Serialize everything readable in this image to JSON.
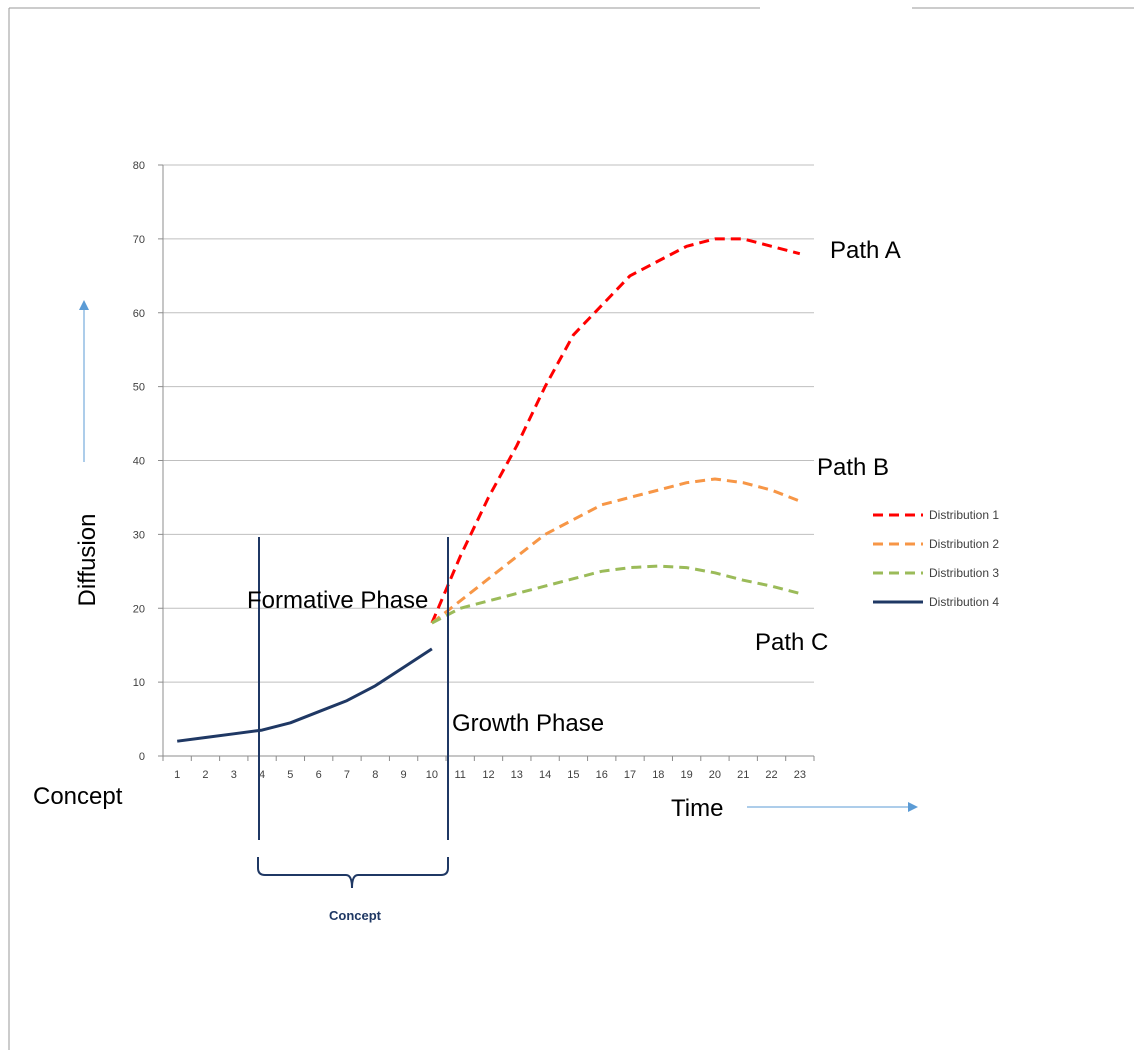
{
  "labels": {
    "y_axis": "Diffusion",
    "x_axis": "Time",
    "concept_left": "Concept",
    "formative_phase": "Formative Phase",
    "growth_phase": "Growth Phase",
    "path_a": "Path A",
    "path_b": "Path B",
    "path_c": "Path C",
    "bracket_label": "Concept"
  },
  "chart_data": {
    "type": "line",
    "x": [
      1,
      2,
      3,
      4,
      5,
      6,
      7,
      8,
      9,
      10,
      11,
      12,
      13,
      14,
      15,
      16,
      17,
      18,
      19,
      20,
      21,
      22,
      23
    ],
    "ylim": [
      0,
      80
    ],
    "yticks": [
      0,
      10,
      20,
      30,
      40,
      50,
      60,
      70,
      80
    ],
    "grid": true,
    "legend": "right",
    "series": [
      {
        "name": "Distribution 1",
        "color": "#ff0000",
        "dash": true,
        "x": [
          10,
          11,
          12,
          13,
          14,
          15,
          16,
          17,
          18,
          19,
          20,
          21,
          22,
          23
        ],
        "values": [
          18,
          27,
          35,
          42,
          50,
          57,
          61,
          65,
          67,
          69,
          70,
          70,
          69,
          68
        ]
      },
      {
        "name": "Distribution 2",
        "color": "#f79646",
        "dash": true,
        "x": [
          10,
          11,
          12,
          13,
          14,
          15,
          16,
          17,
          18,
          19,
          20,
          21,
          22,
          23
        ],
        "values": [
          18,
          21,
          24,
          27,
          30,
          32,
          34,
          35,
          36,
          37,
          37.5,
          37,
          36,
          34.5
        ]
      },
      {
        "name": "Distribution 3",
        "color": "#9bbb59",
        "dash": true,
        "x": [
          10,
          11,
          12,
          13,
          14,
          15,
          16,
          17,
          18,
          19,
          20,
          21,
          22,
          23
        ],
        "values": [
          18,
          20,
          21,
          22,
          23,
          24,
          25,
          25.5,
          25.7,
          25.5,
          24.8,
          23.8,
          23,
          22
        ]
      },
      {
        "name": "Distribution 4",
        "color": "#1f3864",
        "dash": false,
        "x": [
          1,
          2,
          3,
          4,
          5,
          6,
          7,
          8,
          9,
          10
        ],
        "values": [
          2,
          2.5,
          3,
          3.5,
          4.5,
          6,
          7.5,
          9.5,
          12,
          14.5
        ]
      }
    ]
  }
}
